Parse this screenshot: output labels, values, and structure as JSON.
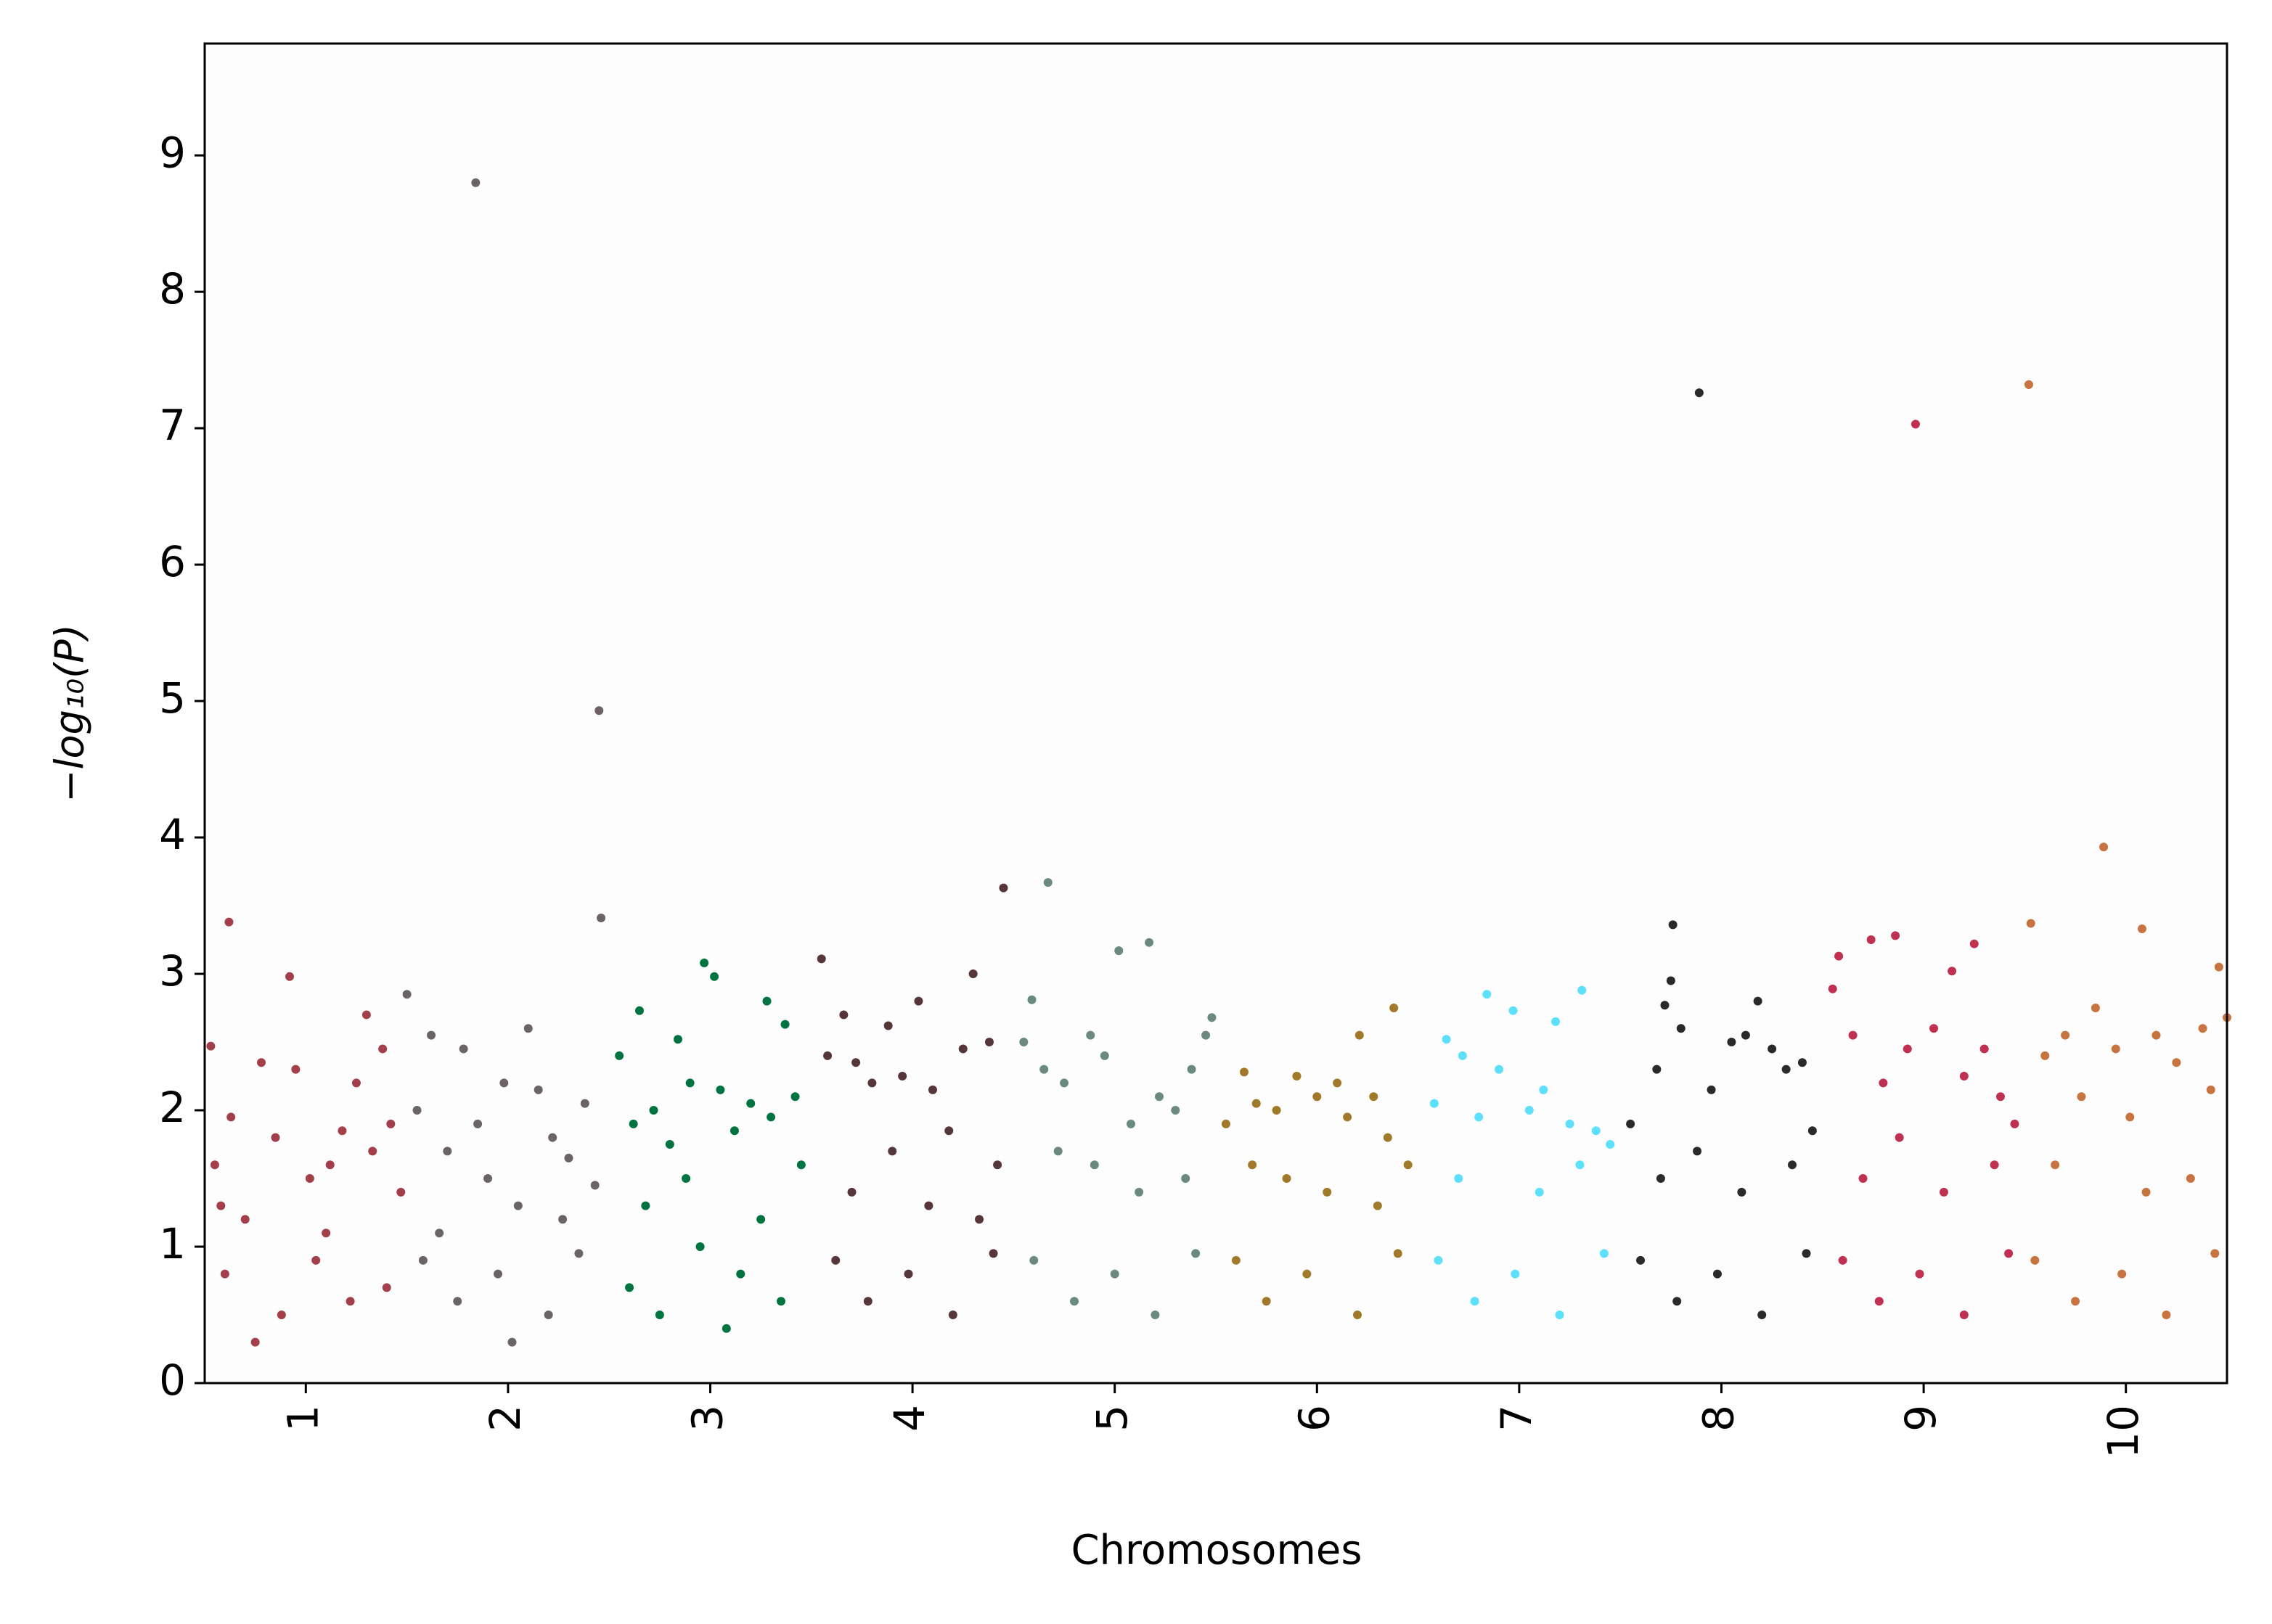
{
  "chart_data": {
    "type": "scatter",
    "xlabel": "Chromosomes",
    "ylabel": "−log₁₀(P)",
    "xlim": [
      0.5,
      10.5
    ],
    "xticks": [
      1,
      2,
      3,
      4,
      5,
      6,
      7,
      8,
      9,
      10
    ],
    "ylim": [
      0,
      9.82
    ],
    "yticks": [
      0,
      1,
      2,
      3,
      4,
      5,
      6,
      7,
      8,
      9
    ],
    "series": [
      {
        "color": "#a33e4b",
        "x": [
          0.62,
          0.92,
          0.53,
          1.3,
          1.38,
          0.55,
          0.63,
          0.7,
          0.78,
          0.85,
          0.95,
          1.02,
          1.1,
          1.18,
          1.25,
          1.33,
          1.42,
          1.47,
          0.6,
          0.88,
          1.05,
          1.22,
          0.75,
          1.4,
          0.58,
          1.12
        ],
        "values": [
          3.38,
          2.98,
          2.47,
          2.7,
          2.45,
          1.6,
          1.95,
          1.2,
          2.35,
          1.8,
          2.3,
          1.5,
          1.1,
          1.85,
          2.2,
          1.7,
          1.9,
          1.4,
          0.8,
          0.5,
          0.9,
          0.6,
          0.3,
          0.7,
          1.3,
          1.6
        ]
      },
      {
        "color": "#6b6364",
        "x": [
          1.84,
          2.45,
          2.46,
          1.5,
          2.1,
          1.55,
          1.62,
          1.7,
          1.78,
          1.9,
          1.98,
          2.05,
          2.15,
          2.22,
          2.3,
          2.38,
          2.43,
          1.58,
          1.75,
          1.95,
          2.2,
          2.35,
          1.66,
          2.02,
          2.27,
          1.85
        ],
        "values": [
          8.8,
          4.93,
          3.41,
          2.85,
          2.6,
          2.0,
          2.55,
          1.7,
          2.45,
          1.5,
          2.2,
          1.3,
          2.15,
          1.8,
          1.65,
          2.05,
          1.45,
          0.9,
          0.6,
          0.8,
          0.5,
          0.95,
          1.1,
          0.3,
          1.2,
          1.9
        ]
      },
      {
        "color": "#007440",
        "x": [
          2.97,
          3.02,
          2.65,
          3.28,
          3.37,
          2.84,
          2.55,
          2.62,
          2.72,
          2.8,
          2.9,
          3.05,
          3.12,
          3.2,
          3.3,
          3.42,
          3.45,
          2.6,
          2.75,
          2.95,
          3.15,
          3.35,
          2.68,
          3.08,
          3.25,
          2.88
        ],
        "values": [
          3.08,
          2.98,
          2.73,
          2.8,
          2.63,
          2.52,
          2.4,
          1.9,
          2.0,
          1.75,
          2.2,
          2.15,
          1.85,
          2.05,
          1.95,
          2.1,
          1.6,
          0.7,
          0.5,
          1.0,
          0.8,
          0.6,
          1.3,
          0.4,
          1.2,
          1.5
        ]
      },
      {
        "color": "#57363a",
        "x": [
          4.45,
          3.55,
          4.3,
          4.03,
          3.66,
          3.88,
          3.58,
          3.72,
          3.8,
          3.95,
          4.1,
          4.18,
          4.25,
          4.38,
          4.42,
          3.62,
          3.78,
          3.98,
          4.2,
          4.4,
          3.7,
          4.08,
          4.33,
          3.9
        ],
        "values": [
          3.63,
          3.11,
          3.0,
          2.8,
          2.7,
          2.62,
          2.4,
          2.35,
          2.2,
          2.25,
          2.15,
          1.85,
          2.45,
          2.5,
          1.6,
          0.9,
          0.6,
          0.8,
          0.5,
          0.95,
          1.4,
          1.3,
          1.2,
          1.7
        ]
      },
      {
        "color": "#6a8a80",
        "x": [
          4.67,
          5.02,
          5.17,
          4.59,
          5.48,
          4.55,
          4.65,
          4.75,
          4.88,
          4.95,
          5.08,
          5.22,
          5.3,
          5.38,
          5.45,
          4.6,
          4.8,
          5.0,
          5.2,
          5.4,
          4.72,
          5.12,
          5.35,
          4.9
        ],
        "values": [
          3.67,
          3.17,
          3.23,
          2.81,
          2.68,
          2.5,
          2.3,
          2.2,
          2.55,
          2.4,
          1.9,
          2.1,
          2.0,
          2.3,
          2.55,
          0.9,
          0.6,
          0.8,
          0.5,
          0.95,
          1.7,
          1.4,
          1.5,
          1.6
        ]
      },
      {
        "color": "#a07a2a",
        "x": [
          6.38,
          6.21,
          5.64,
          5.55,
          5.7,
          5.8,
          5.9,
          6.0,
          6.1,
          6.15,
          6.28,
          6.35,
          6.45,
          5.6,
          5.75,
          5.95,
          6.2,
          6.4,
          5.85,
          6.05,
          6.3,
          5.68
        ],
        "values": [
          2.75,
          2.55,
          2.28,
          1.9,
          2.05,
          2.0,
          2.25,
          2.1,
          2.2,
          1.95,
          2.1,
          1.8,
          1.6,
          0.9,
          0.6,
          0.8,
          0.5,
          0.95,
          1.5,
          1.4,
          1.3,
          1.6
        ]
      },
      {
        "color": "#5ce0fc",
        "x": [
          6.84,
          6.97,
          7.31,
          7.18,
          6.58,
          6.64,
          6.72,
          6.8,
          6.9,
          7.05,
          7.12,
          7.25,
          7.38,
          7.45,
          6.6,
          6.78,
          6.98,
          7.2,
          7.42,
          6.7,
          7.1,
          7.3
        ],
        "values": [
          2.85,
          2.73,
          2.88,
          2.65,
          2.05,
          2.52,
          2.4,
          1.95,
          2.3,
          2.0,
          2.15,
          1.9,
          1.85,
          1.75,
          0.9,
          0.6,
          0.8,
          0.5,
          0.95,
          1.5,
          1.4,
          1.6
        ]
      },
      {
        "color": "#2a2a2a",
        "x": [
          7.89,
          7.76,
          7.75,
          8.18,
          7.72,
          7.55,
          7.68,
          7.8,
          7.95,
          8.05,
          8.12,
          8.25,
          8.32,
          8.4,
          8.45,
          7.6,
          7.78,
          7.98,
          8.2,
          8.42,
          7.7,
          8.1,
          8.35,
          7.88
        ],
        "values": [
          7.26,
          3.36,
          2.95,
          2.8,
          2.77,
          1.9,
          2.3,
          2.6,
          2.15,
          2.5,
          2.55,
          2.45,
          2.3,
          2.35,
          1.85,
          0.9,
          0.6,
          0.8,
          0.5,
          0.95,
          1.5,
          1.4,
          1.6,
          1.7
        ]
      },
      {
        "color": "#c03050",
        "x": [
          8.96,
          8.58,
          8.74,
          8.86,
          9.14,
          9.25,
          8.55,
          8.65,
          8.8,
          8.92,
          9.05,
          9.2,
          9.3,
          9.38,
          9.45,
          8.6,
          8.78,
          8.98,
          9.2,
          9.42,
          8.7,
          9.1,
          9.35,
          8.88
        ],
        "values": [
          7.03,
          3.13,
          3.25,
          3.28,
          3.02,
          3.22,
          2.89,
          2.55,
          2.2,
          2.45,
          2.6,
          2.25,
          2.45,
          2.1,
          1.9,
          0.9,
          0.6,
          0.8,
          0.5,
          0.95,
          1.5,
          1.4,
          1.6,
          1.8
        ]
      },
      {
        "color": "#c87440",
        "x": [
          9.52,
          9.89,
          10.08,
          9.53,
          10.46,
          10.5,
          9.6,
          9.7,
          9.78,
          9.85,
          9.95,
          10.02,
          10.15,
          10.25,
          10.38,
          10.42,
          9.55,
          9.75,
          9.98,
          10.2,
          10.44,
          9.65,
          10.1,
          10.32
        ],
        "values": [
          7.32,
          3.93,
          3.33,
          3.37,
          3.05,
          2.68,
          2.4,
          2.55,
          2.1,
          2.75,
          2.45,
          1.95,
          2.55,
          2.35,
          2.6,
          2.15,
          0.9,
          0.6,
          0.8,
          0.5,
          0.95,
          1.6,
          1.4,
          1.5
        ]
      }
    ]
  }
}
